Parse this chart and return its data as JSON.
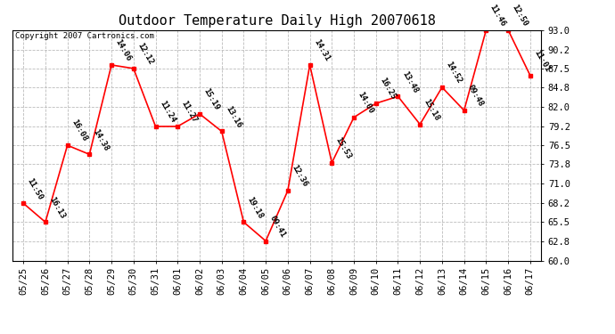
{
  "title": "Outdoor Temperature Daily High 20070618",
  "copyright": "Copyright 2007 Cartronics.com",
  "line_color": "red",
  "marker_color": "red",
  "background_color": "#ffffff",
  "grid_color": "#bbbbbb",
  "text_color": "black",
  "ylim": [
    60.0,
    93.0
  ],
  "yticks": [
    60.0,
    62.8,
    65.5,
    68.2,
    71.0,
    73.8,
    76.5,
    79.2,
    82.0,
    84.8,
    87.5,
    90.2,
    93.0
  ],
  "dates": [
    "05/25",
    "05/26",
    "05/27",
    "05/28",
    "05/29",
    "05/30",
    "05/31",
    "06/01",
    "06/02",
    "06/03",
    "06/04",
    "06/05",
    "06/06",
    "06/07",
    "06/08",
    "06/09",
    "06/10",
    "06/11",
    "06/12",
    "06/13",
    "06/14",
    "06/15",
    "06/16",
    "06/17"
  ],
  "values": [
    68.2,
    65.5,
    76.5,
    75.2,
    88.0,
    87.5,
    79.2,
    79.2,
    81.0,
    78.5,
    65.5,
    62.8,
    70.0,
    88.0,
    74.0,
    80.5,
    82.5,
    83.5,
    79.5,
    84.8,
    81.5,
    93.0,
    93.0,
    86.5
  ],
  "labels": [
    "11:50",
    "16:13",
    "16:08",
    "14:38",
    "14:06",
    "12:12",
    "11:24",
    "11:27",
    "15:19",
    "13:16",
    "19:18",
    "09:41",
    "12:36",
    "14:31",
    "15:53",
    "14:00",
    "16:25",
    "13:48",
    "15:18",
    "14:52",
    "09:48",
    "11:46",
    "12:50",
    "11:01"
  ],
  "title_fontsize": 11,
  "label_fontsize": 6.5,
  "tick_fontsize": 7.5,
  "copyright_fontsize": 6.5
}
